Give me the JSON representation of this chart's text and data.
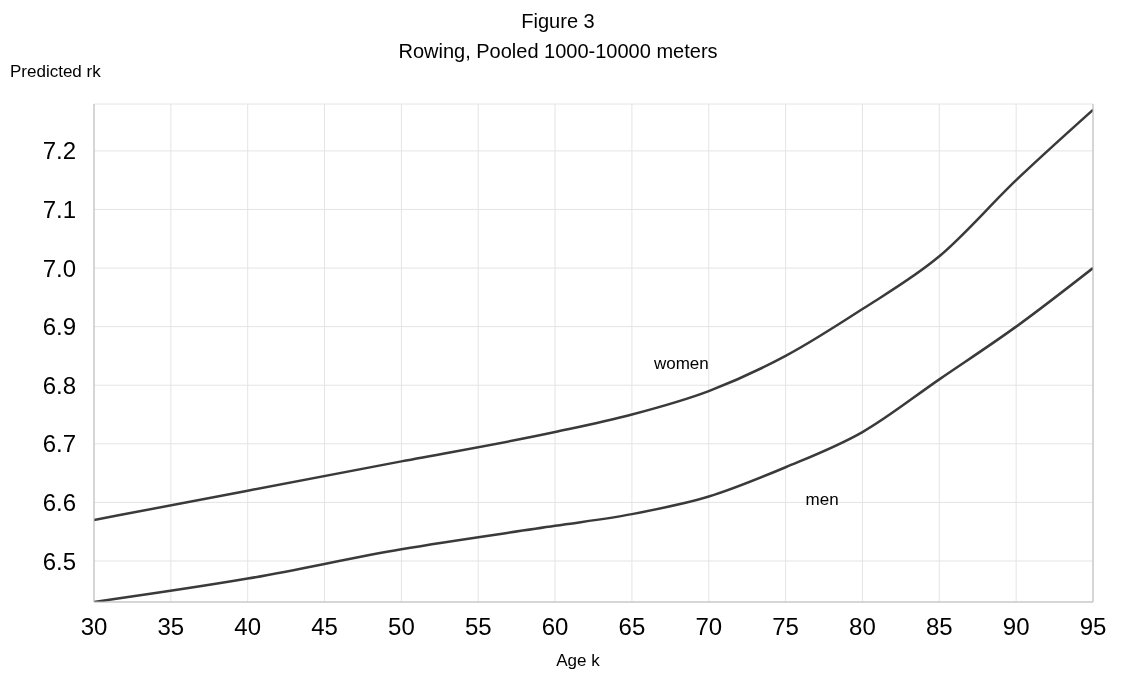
{
  "chart_data": {
    "type": "line",
    "title": "Figure 3",
    "subtitle": "Rowing, Pooled 1000-10000 meters",
    "xlabel": "Age k",
    "ylabel": "Predicted rk",
    "x": [
      30,
      40,
      50,
      60,
      65,
      70,
      75,
      80,
      85,
      90,
      95
    ],
    "series": [
      {
        "name": "women",
        "color": "#3a3a3a",
        "values": [
          6.57,
          6.62,
          6.67,
          6.72,
          6.75,
          6.79,
          6.85,
          6.93,
          7.02,
          7.15,
          7.27
        ]
      },
      {
        "name": "men",
        "color": "#3a3a3a",
        "values": [
          6.43,
          6.47,
          6.52,
          6.56,
          6.58,
          6.61,
          6.66,
          6.72,
          6.81,
          6.9,
          7.0
        ]
      }
    ],
    "xlim": [
      30,
      95
    ],
    "xticks": [
      30,
      35,
      40,
      45,
      50,
      55,
      60,
      65,
      70,
      75,
      80,
      85,
      90,
      95
    ],
    "ylim": [
      6.43,
      7.28
    ],
    "yticks": [
      6.5,
      6.6,
      6.7,
      6.8,
      6.9,
      {
        "value": 7,
        "label": "7.0"
      },
      7.1,
      7.2
    ],
    "grid": true,
    "legend": false,
    "marker": "none",
    "line_style": "solid"
  }
}
